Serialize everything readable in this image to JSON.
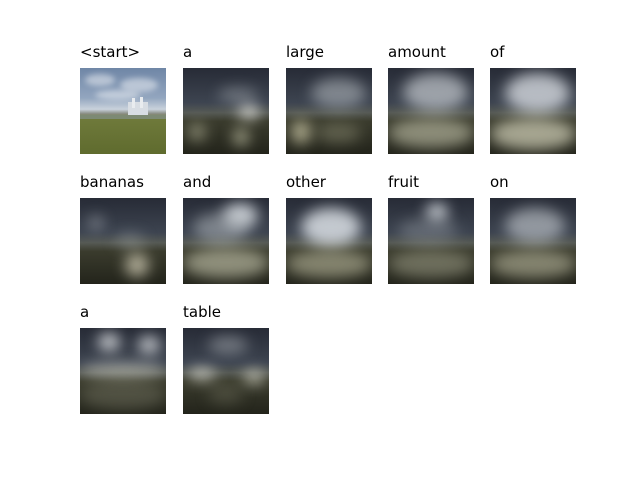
{
  "words": [
    "<start>",
    "a",
    "large",
    "amount",
    "of",
    "bananas",
    "and",
    "other",
    "fruit",
    "on",
    "a",
    "table"
  ]
}
